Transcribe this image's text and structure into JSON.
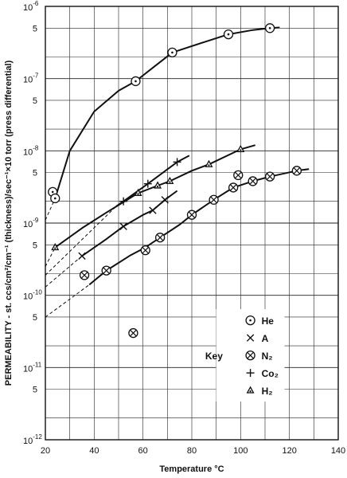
{
  "chart_data": {
    "type": "scatter",
    "xlabel": "Temperature °C",
    "ylabel": "PERMEABILITY - st. ccs/cm²/cm⁻¹ (thickness)/sec⁻¹×10 torr (press differential)",
    "xlim": [
      20,
      140
    ],
    "ylim": [
      1e-12,
      1e-06
    ],
    "y_scale": "log",
    "grid": true,
    "x_ticks": [
      "20",
      "40",
      "60",
      "80",
      "100",
      "120",
      "140"
    ],
    "y_decade_labels": [
      {
        "value": 1e-06,
        "base": "10",
        "exp": "-6"
      },
      {
        "value": 1e-07,
        "base": "10",
        "exp": "-7"
      },
      {
        "value": 1e-08,
        "base": "10",
        "exp": "-8"
      },
      {
        "value": 1e-09,
        "base": "10",
        "exp": "-9"
      },
      {
        "value": 1e-10,
        "base": "10",
        "exp": "-10"
      },
      {
        "value": 1e-11,
        "base": "10",
        "exp": "-11"
      },
      {
        "value": 1e-12,
        "base": "10",
        "exp": "-12"
      }
    ],
    "y_minor_labels": [
      {
        "value": 5e-07,
        "label": "5"
      },
      {
        "value": 5e-08,
        "label": "5"
      },
      {
        "value": 5e-09,
        "label": "5"
      },
      {
        "value": 5e-10,
        "label": "5"
      },
      {
        "value": 5e-11,
        "label": "5"
      },
      {
        "value": 5e-12,
        "label": "5"
      }
    ],
    "series": [
      {
        "name": "He",
        "marker": "circle-dot",
        "points": [
          [
            23,
            2.7e-09
          ],
          [
            24,
            2.2e-09
          ],
          [
            57,
            9.2e-08
          ],
          [
            72,
            2.3e-07
          ],
          [
            95,
            4.1e-07
          ],
          [
            112,
            5e-07
          ]
        ],
        "curve": [
          [
            24,
            2.2e-09
          ],
          [
            30,
            1e-08
          ],
          [
            40,
            3.5e-08
          ],
          [
            50,
            6.8e-08
          ],
          [
            57,
            9.2e-08
          ],
          [
            65,
            1.5e-07
          ],
          [
            72,
            2.3e-07
          ],
          [
            85,
            3.2e-07
          ],
          [
            95,
            4.1e-07
          ],
          [
            105,
            4.7e-07
          ],
          [
            112,
            5e-07
          ],
          [
            116,
            5.1e-07
          ]
        ],
        "extrapolation": [
          [
            20,
            1.1e-09
          ],
          [
            24,
            2.2e-09
          ]
        ]
      },
      {
        "name": "A",
        "marker": "x",
        "points": [
          [
            35,
            3.5e-10
          ],
          [
            52,
            9e-10
          ],
          [
            64,
            1.5e-09
          ],
          [
            69,
            2.1e-09
          ]
        ],
        "curve": [
          [
            35,
            3.5e-10
          ],
          [
            45,
            6e-10
          ],
          [
            52,
            9e-10
          ],
          [
            60,
            1.3e-09
          ],
          [
            64,
            1.5e-09
          ],
          [
            69,
            2.1e-09
          ],
          [
            74,
            2.8e-09
          ]
        ],
        "extrapolation": [
          [
            20,
            1.3e-10
          ],
          [
            35,
            3.5e-10
          ]
        ]
      },
      {
        "name": "N₂",
        "marker": "circle-x",
        "points": [
          [
            36,
            1.9e-10
          ],
          [
            45,
            2.2e-10
          ],
          [
            56,
            3e-11
          ],
          [
            61,
            4.2e-10
          ],
          [
            67,
            6.3e-10
          ],
          [
            80,
            1.3e-09
          ],
          [
            89,
            2.1e-09
          ],
          [
            97,
            3.1e-09
          ],
          [
            99,
            4.6e-09
          ],
          [
            105,
            3.8e-09
          ],
          [
            112,
            4.4e-09
          ],
          [
            123,
            5.3e-09
          ]
        ],
        "curve": [
          [
            38,
            1.4e-10
          ],
          [
            45,
            2.2e-10
          ],
          [
            55,
            3.6e-10
          ],
          [
            61,
            4.6e-10
          ],
          [
            67,
            6.3e-10
          ],
          [
            75,
            9.5e-10
          ],
          [
            80,
            1.3e-09
          ],
          [
            89,
            2.1e-09
          ],
          [
            97,
            3.1e-09
          ],
          [
            105,
            3.8e-09
          ],
          [
            112,
            4.4e-09
          ],
          [
            123,
            5.3e-09
          ],
          [
            128,
            5.6e-09
          ]
        ],
        "extrapolation": [
          [
            20,
            5e-11
          ],
          [
            38,
            1.4e-10
          ]
        ]
      },
      {
        "name": "Co₂",
        "marker": "plus",
        "points": [
          [
            52,
            2e-09
          ],
          [
            62,
            3.5e-09
          ],
          [
            74,
            7e-09
          ]
        ],
        "curve": [
          [
            49,
            1.7e-09
          ],
          [
            52,
            2e-09
          ],
          [
            62,
            3.5e-09
          ],
          [
            74,
            7e-09
          ],
          [
            79,
            8.6e-09
          ]
        ],
        "extrapolation": [
          [
            20,
            1.9e-10
          ],
          [
            49,
            1.7e-09
          ]
        ]
      },
      {
        "name": "H₂",
        "marker": "triangle-dot",
        "points": [
          [
            24,
            4.6e-10
          ],
          [
            58,
            2.6e-09
          ],
          [
            66,
            3.3e-09
          ],
          [
            71,
            3.8e-09
          ],
          [
            87,
            6.5e-09
          ],
          [
            100,
            1.05e-08
          ]
        ],
        "curve": [
          [
            24,
            4.6e-10
          ],
          [
            35,
            8.5e-10
          ],
          [
            45,
            1.4e-09
          ],
          [
            58,
            2.6e-09
          ],
          [
            66,
            3.3e-09
          ],
          [
            71,
            3.8e-09
          ],
          [
            80,
            5.3e-09
          ],
          [
            87,
            6.5e-09
          ],
          [
            100,
            1.05e-08
          ],
          [
            106,
            1.2e-08
          ]
        ],
        "extrapolation": [
          [
            20,
            2.5e-10
          ],
          [
            24,
            4.6e-10
          ]
        ]
      }
    ],
    "legend": {
      "title": "Key",
      "placement": "bottom-right",
      "entries": [
        {
          "marker": "circle-dot",
          "label": "He"
        },
        {
          "marker": "x",
          "label": "A"
        },
        {
          "marker": "circle-x",
          "label": "N₂"
        },
        {
          "marker": "plus",
          "label": "Co₂"
        },
        {
          "marker": "triangle-dot",
          "label": "H₂"
        }
      ]
    }
  }
}
